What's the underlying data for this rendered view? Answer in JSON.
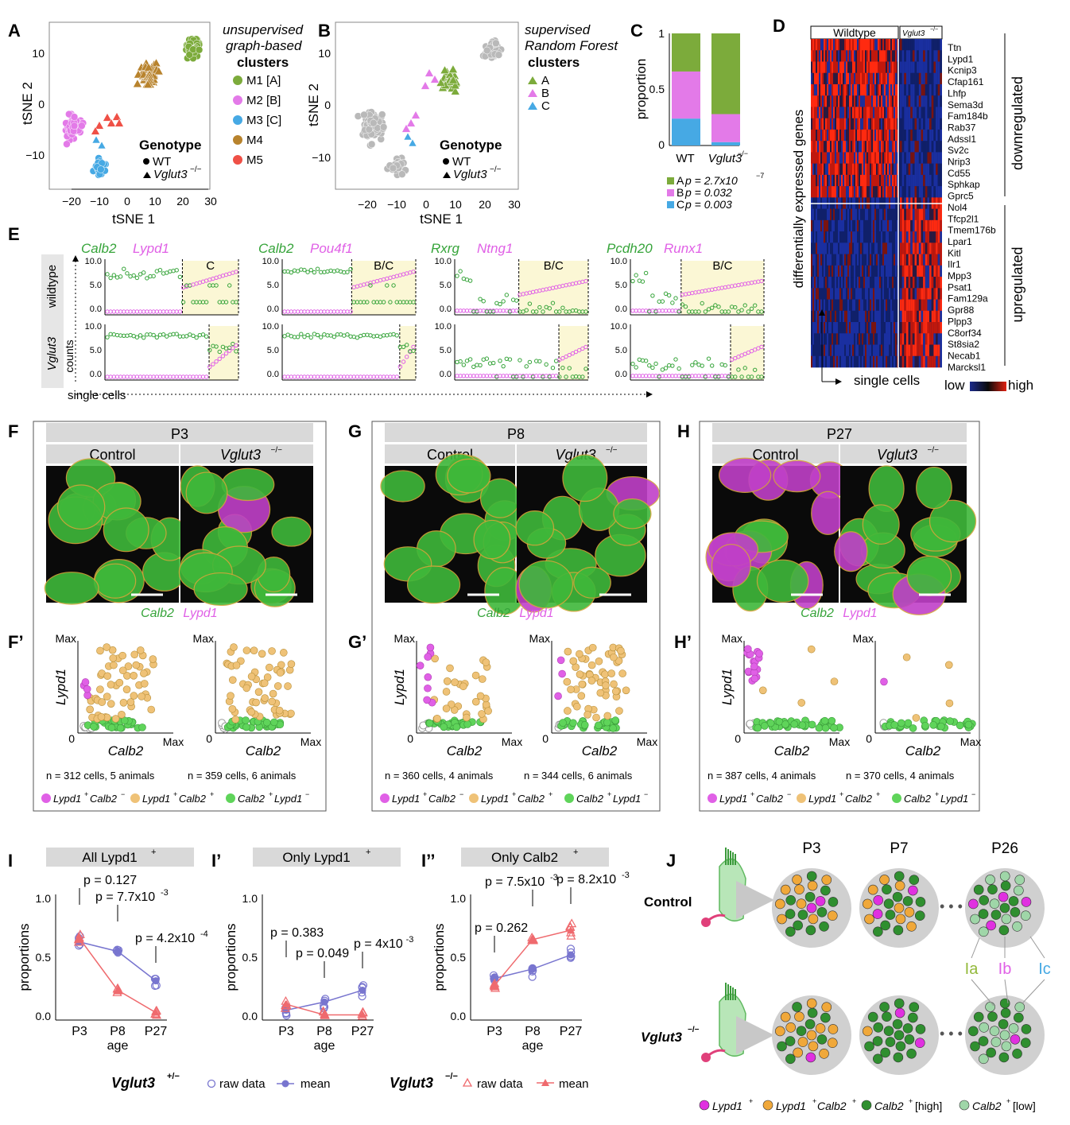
{
  "colors": {
    "M1": "#7cab3b",
    "M2": "#e37ae8",
    "M3": "#46a9e4",
    "M4": "#b8832d",
    "M5": "#ef5046",
    "gray": "#b9b9b9",
    "calb": "#36a43a",
    "lypd": "#e060e6",
    "yellow": "#fbf7d5",
    "double": "#efc277",
    "calbpt": "#5fd45a",
    "wt": "#7875cf",
    "ko": "#ef6a6e"
  },
  "panel_labels": {
    "A": "A",
    "B": "B",
    "C": "C",
    "D": "D",
    "E": "E",
    "F": "F",
    "G": "G",
    "H": "H",
    "F2": "F’",
    "G2": "G’",
    "H2": "H’",
    "I": "I",
    "I2": "I’",
    "I3": "I’’",
    "J": "J"
  },
  "panelA": {
    "xlabel": "tSNE 1",
    "ylabel": "tSNE 2",
    "xticks": [
      "−20",
      "−10",
      "0",
      "10",
      "20",
      "30"
    ],
    "yticks": [
      "10",
      "0",
      "−10"
    ],
    "legend_title": [
      "unsupervised",
      "graph-based",
      "clusters"
    ],
    "legend_items": [
      "M1 [A]",
      "M2 [B]",
      "M3 [C]",
      "M4",
      "M5"
    ],
    "genotype_title": "Genotype",
    "genotype_wt": "WT",
    "genotype_ko": "Vglut3"
  },
  "panelB": {
    "xlabel": "tSNE 1",
    "ylabel": "tSNE 2",
    "xticks": [
      "−20",
      "−10",
      "0",
      "10",
      "20",
      "30"
    ],
    "yticks": [
      "10",
      "0",
      "−10"
    ],
    "legend_title": [
      "supervised",
      "Random Forest",
      "clusters"
    ],
    "legend_items": [
      "A",
      "B",
      "C"
    ],
    "genotype_title": "Genotype",
    "genotype_wt": "WT",
    "genotype_ko": "Vglut3"
  },
  "panelC": {
    "ylabel": "proportion",
    "yticks": [
      "0",
      "0.5",
      "1"
    ],
    "xticks": [
      "WT",
      "Vglut3"
    ],
    "pvals": [
      {
        "k": "A",
        "p": "p = 2.7x10"
      },
      {
        "k": "B",
        "p": "p = 0.032"
      },
      {
        "k": "C",
        "p": "p = 0.003"
      }
    ],
    "exp": "−7"
  },
  "chart_data": [
    {
      "type": "bar",
      "stacked": true,
      "ylabel": "proportion",
      "categories": [
        "WT",
        "Vglut3-/-"
      ],
      "ylim": [
        0,
        1
      ],
      "series": [
        {
          "name": "A",
          "values": [
            0.34,
            0.72
          ]
        },
        {
          "name": "B",
          "values": [
            0.42,
            0.25
          ]
        },
        {
          "name": "C",
          "values": [
            0.24,
            0.03
          ]
        }
      ]
    },
    {
      "type": "line",
      "title": "All Lypd1+",
      "xlabel": "age",
      "ylabel": "proportions",
      "categories": [
        "P3",
        "P8",
        "P27"
      ],
      "ylim": [
        0,
        1
      ],
      "series": [
        {
          "name": "Vglut3+/- mean",
          "values": [
            0.63,
            0.55,
            0.3
          ]
        },
        {
          "name": "Vglut3-/- mean",
          "values": [
            0.66,
            0.22,
            0.03
          ]
        }
      ],
      "pvalues": [
        "p = 0.127",
        "p = 7.7x10-3",
        "p = 4.2x10-4"
      ]
    },
    {
      "type": "line",
      "title": "Only Lypd1+",
      "xlabel": "age",
      "ylabel": "proportions",
      "categories": [
        "P3",
        "P8",
        "P27"
      ],
      "ylim": [
        0,
        1
      ],
      "series": [
        {
          "name": "Vglut3+/- mean",
          "values": [
            0.05,
            0.12,
            0.22
          ]
        },
        {
          "name": "Vglut3-/- mean",
          "values": [
            0.1,
            0.01,
            0.01
          ]
        }
      ],
      "pvalues": [
        "p = 0.383",
        "p = 0.049",
        "p = 4x10-3"
      ]
    },
    {
      "type": "line",
      "title": "Only Calb2+",
      "xlabel": "age",
      "ylabel": "proportions",
      "categories": [
        "P3",
        "P8",
        "P27"
      ],
      "ylim": [
        0,
        1
      ],
      "series": [
        {
          "name": "Vglut3+/- mean",
          "values": [
            0.32,
            0.4,
            0.52
          ]
        },
        {
          "name": "Vglut3-/- mean",
          "values": [
            0.26,
            0.65,
            0.73
          ]
        }
      ],
      "pvalues": [
        "p = 0.262",
        "p = 7.5x10-3",
        "p = 8.2x10-3"
      ]
    }
  ],
  "panelD": {
    "col_wt": "Wildtype",
    "col_ko": "Vglut3",
    "ylabel": "differentially expressed genes",
    "xlabel": "single cells",
    "genes_down": [
      "Ttn",
      "Lypd1",
      "Kcnip3",
      "Cfap161",
      "Lhfp",
      "Sema3d",
      "Fam184b",
      "Rab37",
      "Adssl1",
      "Sv2c",
      "Nrip3",
      "Cd55",
      "Sphkap",
      "Gprc5"
    ],
    "genes_up": [
      "Nol4",
      "Tfcp2l1",
      "Tmem176b",
      "Lpar1",
      "Kitl",
      "Ilr1",
      "Mpp3",
      "Psat1",
      "Fam129a",
      "Gpr88",
      "Plpp3",
      "C8orf34",
      "St8sia2",
      "Necab1",
      "Marcksl1"
    ],
    "label_down": "downregulated",
    "label_up": "upregulated",
    "low": "low",
    "high": "high"
  },
  "panelE": {
    "pairs": [
      {
        "g": "Calb2",
        "m": "Lypd1",
        "tag": "C"
      },
      {
        "g": "Calb2",
        "m": "Pou4f1",
        "tag": "B/C"
      },
      {
        "g": "Rxrg",
        "m": "Ntng1",
        "tag": "B/C"
      },
      {
        "g": "Pcdh20",
        "m": "Runx1",
        "tag": "B/C"
      }
    ],
    "row_wt": "wildtype",
    "row_ko": "Vglut3",
    "ylabel": "counts",
    "xlabel": "single cells",
    "yticks": [
      "10.0",
      "5.0",
      "0.0"
    ]
  },
  "panelsFGH": [
    {
      "age": "P3",
      "ctrl": "Control",
      "ko": "Vglut3",
      "n1": "n = 312 cells, 5 animals",
      "n2": "n = 359 cells, 6 animals"
    },
    {
      "age": "P8",
      "ctrl": "Control",
      "ko": "Vglut3",
      "n1": "n = 360 cells, 4 animals",
      "n2": "n = 344 cells, 6 animals"
    },
    {
      "age": "P27",
      "ctrl": "Control",
      "ko": "Vglut3",
      "n1": "n = 387 cells, 4 animals",
      "n2": "n = 370 cells, 4 animals"
    }
  ],
  "scatter": {
    "ylabel": "Lypd1",
    "xlabel": "Calb2",
    "max": "Max",
    "zero": "0"
  },
  "stain": {
    "calb": "Calb2",
    "lypd": "Lypd1"
  },
  "legendFGH": [
    {
      "a": "Lypd1",
      "b": "Calb2",
      "sa": "+",
      "sb": "−"
    },
    {
      "a": "Lypd1",
      "b": "Calb2",
      "sa": "+",
      "sb": "+"
    },
    {
      "a": "Calb2",
      "b": "Lypd1",
      "sa": "+",
      "sb": "−"
    }
  ],
  "panelI": {
    "ylabel": "proportions",
    "xlabel": "age",
    "xticks": [
      "P3",
      "P8",
      "P27"
    ],
    "yticks": [
      "1.0",
      "0.5",
      "0.0"
    ],
    "titles": [
      "All Lypd1",
      "Only Lypd1",
      "Only Calb2"
    ],
    "het_label": "Vglut3",
    "ko_label": "Vglut3",
    "raw": "raw data",
    "mean": "mean"
  },
  "panelJ": {
    "control": "Control",
    "ko": "Vglut3",
    "ages": [
      "P3",
      "P7",
      "P26"
    ],
    "sub": [
      "Ia",
      "Ib",
      "Ic"
    ],
    "legend": [
      "Lypd1",
      "Lypd1",
      "Calb2",
      "Calb2",
      "Calb2"
    ],
    "legend_high": "[high]",
    "legend_low": "[low]"
  }
}
